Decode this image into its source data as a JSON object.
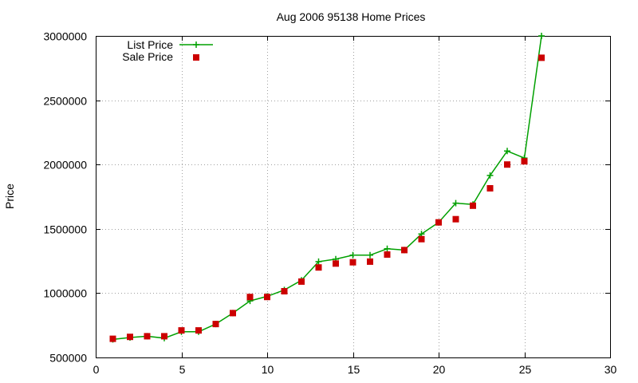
{
  "chart_data": {
    "type": "line",
    "title": "Aug 2006 95138 Home Prices",
    "xlabel": "",
    "ylabel": "Price",
    "xlim": [
      0,
      30
    ],
    "ylim": [
      500000,
      3000000
    ],
    "xticks": [
      "0",
      "5",
      "10",
      "15",
      "20",
      "25",
      "30"
    ],
    "yticks": [
      "500000",
      "1000000",
      "1500000",
      "2000000",
      "2500000",
      "3000000"
    ],
    "grid": true,
    "legend_position": "top-left",
    "x": [
      1,
      2,
      3,
      4,
      5,
      6,
      7,
      8,
      9,
      10,
      11,
      12,
      13,
      14,
      15,
      16,
      17,
      18,
      19,
      20,
      21,
      22,
      23,
      24,
      25,
      26
    ],
    "series": [
      {
        "name": "List Price",
        "style": "line-plus",
        "color": "#00a000",
        "values": [
          640000,
          655000,
          665000,
          650000,
          700000,
          700000,
          760000,
          845000,
          940000,
          975000,
          1025000,
          1100000,
          1245000,
          1265000,
          1295000,
          1295000,
          1345000,
          1335000,
          1460000,
          1550000,
          1700000,
          1690000,
          1915000,
          2105000,
          2050000,
          3000000
        ]
      },
      {
        "name": "Sale Price",
        "style": "square-markers",
        "color": "#cc0000",
        "values": [
          645000,
          660000,
          665000,
          665000,
          710000,
          710000,
          760000,
          845000,
          970000,
          970000,
          1015000,
          1090000,
          1200000,
          1230000,
          1240000,
          1245000,
          1300000,
          1335000,
          1420000,
          1550000,
          1575000,
          1680000,
          1815000,
          2000000,
          2025000,
          2830000
        ]
      }
    ]
  }
}
